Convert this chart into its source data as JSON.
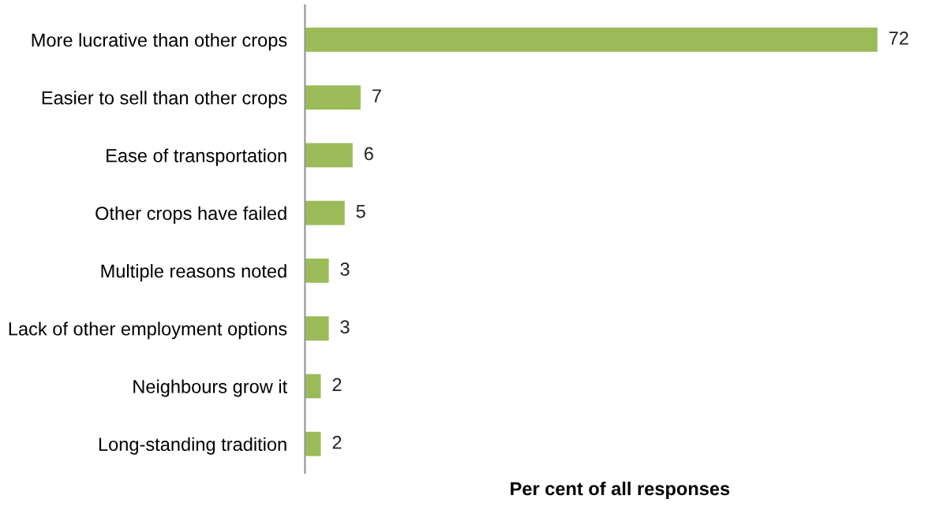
{
  "chart_data": {
    "type": "bar",
    "orientation": "horizontal",
    "xlabel": "Per cent of all responses",
    "categories": [
      "More lucrative than other crops",
      "Easier to sell than other crops",
      "Ease of transportation",
      "Other crops have failed",
      "Multiple reasons noted",
      "Lack of other employment options",
      "Neighbours grow it",
      "Long-standing tradition"
    ],
    "values": [
      72,
      7,
      6,
      5,
      3,
      3,
      2,
      2
    ],
    "color": "#9bbb59",
    "data_labels": true,
    "grid": false,
    "legend": false
  }
}
